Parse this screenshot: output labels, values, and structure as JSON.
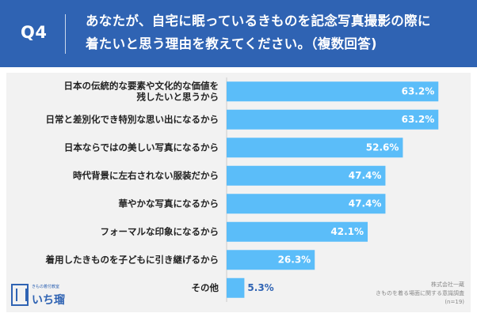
{
  "header": {
    "q_label": "Q4",
    "question": "あなたが、自宅に眠っているきものを記念写真撮影の際に\n着たいと思う理由を教えてください。（複数回答)"
  },
  "brand": {
    "sub": "きもの着付教室",
    "name": "いち瑠"
  },
  "source": {
    "line1": "株式会社一蔵",
    "line2": "きものを着る場面に関する意識調査",
    "line3": "(n=19)"
  },
  "colors": {
    "header": "#2f63b3",
    "bar": "#5bbdf9",
    "label": "#ffffff"
  },
  "chart_data": {
    "type": "bar",
    "orientation": "horizontal",
    "categories": [
      "日本の伝統的な要素や文化的な価値を\n残したいと思うから",
      "日常と差別化でき特別な思い出になるから",
      "日本ならではの美しい写真になるから",
      "時代背景に左右されない服装だから",
      "華やかな写真になるから",
      "フォーマルな印象になるから",
      "着用したきものを子どもに引き継げるから",
      "その他"
    ],
    "values": [
      63.2,
      63.2,
      52.6,
      47.4,
      47.4,
      42.1,
      26.3,
      5.3
    ],
    "value_labels": [
      "63.2%",
      "63.2%",
      "52.6%",
      "47.4%",
      "47.4%",
      "42.1%",
      "26.3%",
      "5.3%"
    ],
    "xlim": [
      0,
      70
    ]
  }
}
